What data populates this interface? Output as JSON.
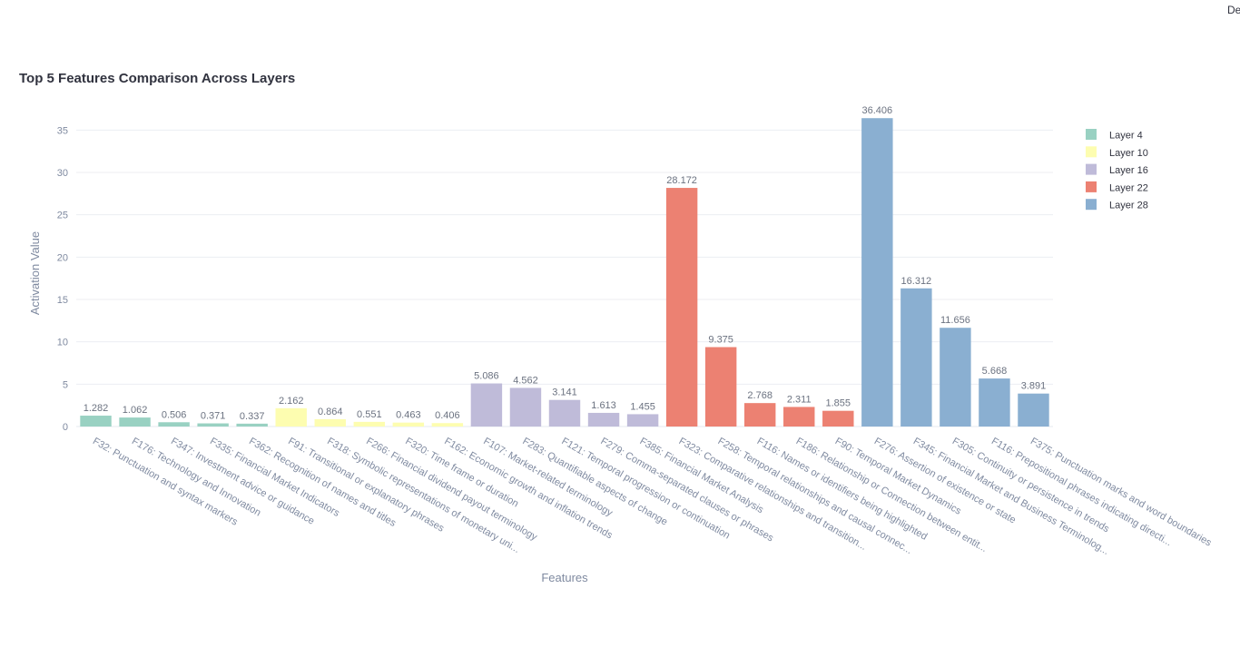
{
  "page": {
    "corner_text": "De"
  },
  "chart_data": {
    "type": "bar",
    "title": "Top 5 Features Comparison Across Layers",
    "xlabel": "Features",
    "ylabel": "Activation Value",
    "ylim": [
      0,
      37.5
    ],
    "yticks": [
      0,
      5,
      10,
      15,
      20,
      25,
      30,
      35
    ],
    "grid": true,
    "legend_position": "top-right",
    "series": [
      {
        "name": "Layer 4",
        "color": "#99d1c2",
        "categories": [
          "F32: Punctuation and syntax markers",
          "F176: Technology and Innovation",
          "F347: Investment advice or guidance",
          "F335: Financial Market Indicators",
          "F362: Recognition of names and titles"
        ],
        "values": [
          1.282,
          1.062,
          0.506,
          0.371,
          0.337
        ],
        "labels": [
          "1.282",
          "1.062",
          "0.506",
          "0.371",
          "0.337"
        ]
      },
      {
        "name": "Layer 10",
        "color": "#fdfdb0",
        "categories": [
          "F91: Transitional or explanatory phrases",
          "F318: Symbolic representations of monetary uni...",
          "F266: Financial dividend payout terminology",
          "F320: Time frame or duration",
          "F162: Economic growth and inflation trends"
        ],
        "values": [
          2.162,
          0.864,
          0.551,
          0.463,
          0.406
        ],
        "labels": [
          "2.162",
          "0.864",
          "0.551",
          "0.463",
          "0.406"
        ]
      },
      {
        "name": "Layer 16",
        "color": "#bfbbd9",
        "categories": [
          "F107: Market-related terminology",
          "F283: Quantifiable aspects of change",
          "F121: Temporal progression or continuation",
          "F279: Comma-separated clauses or phrases",
          "F385: Financial Market Analysis"
        ],
        "values": [
          5.086,
          4.562,
          3.141,
          1.613,
          1.455
        ],
        "labels": [
          "5.086",
          "4.562",
          "3.141",
          "1.613",
          "1.455"
        ]
      },
      {
        "name": "Layer 22",
        "color": "#ec8172",
        "categories": [
          "F323: Comparative relationships and transition...",
          "F258: Temporal relationships and causal connec...",
          "F116: Names or identifiers being highlighted",
          "F186: Relationship or Connection between entit...",
          "F90: Temporal Market Dynamics"
        ],
        "values": [
          28.172,
          9.375,
          2.768,
          2.311,
          1.855
        ],
        "labels": [
          "28.172",
          "9.375",
          "2.768",
          "2.311",
          "1.855"
        ]
      },
      {
        "name": "Layer 28",
        "color": "#8aafd1",
        "categories": [
          "F276: Assertion of existence or state",
          "F345: Financial Market and Business Terminolog...",
          "F305: Continuity or persistence in trends",
          "F116: Prepositional phrases indicating directi...",
          "F375: Punctuation marks and word boundaries"
        ],
        "values": [
          36.406,
          16.312,
          11.656,
          5.668,
          3.891
        ],
        "labels": [
          "36.406",
          "16.312",
          "11.656",
          "5.668",
          "3.891"
        ]
      }
    ]
  }
}
